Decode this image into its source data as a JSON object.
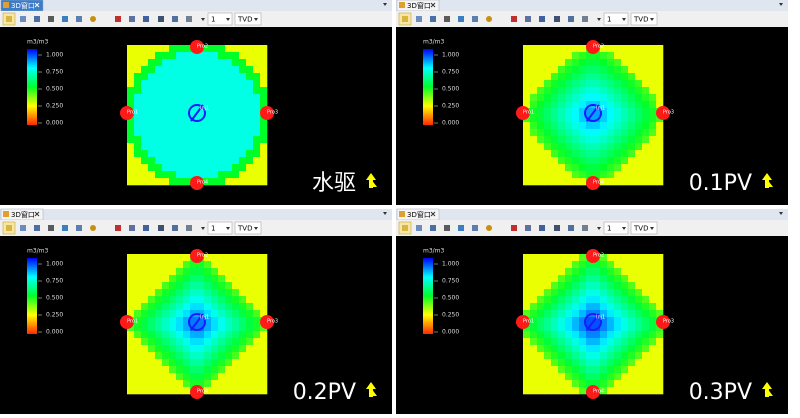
{
  "panels": [
    {
      "tab": "3D窗口",
      "toolbar": {
        "layer": "1",
        "view": "TVD"
      },
      "legend": {
        "unit": "m3/m3",
        "ticks": [
          "1.000",
          "0.750",
          "0.500",
          "0.250",
          "0.000"
        ]
      },
      "wells": {
        "top": "Pro2",
        "left": "Pro1",
        "right": "Pro3",
        "bottom": "Pro4",
        "center": "Inj1"
      },
      "caption": "水驱"
    },
    {
      "tab": "3D窗口",
      "toolbar": {
        "layer": "1",
        "view": "TVD"
      },
      "legend": {
        "unit": "m3/m3",
        "ticks": [
          "1.000",
          "0.750",
          "0.500",
          "0.250",
          "0.000"
        ]
      },
      "wells": {
        "top": "Pro2",
        "left": "Pro1",
        "right": "Pro3",
        "bottom": "Pro4",
        "center": "Inj1"
      },
      "caption": "0.1PV"
    },
    {
      "tab": "3D窗口",
      "toolbar": {
        "layer": "1",
        "view": "TVD"
      },
      "legend": {
        "unit": "m3/m3",
        "ticks": [
          "1.000",
          "0.750",
          "0.500",
          "0.250",
          "0.000"
        ]
      },
      "wells": {
        "top": "Pro2",
        "left": "Pro1",
        "right": "Pro3",
        "bottom": "Pro4",
        "center": "Inj1"
      },
      "caption": "0.2PV"
    },
    {
      "tab": "3D窗口",
      "toolbar": {
        "layer": "1",
        "view": "TVD"
      },
      "legend": {
        "unit": "m3/m3",
        "ticks": [
          "1.000",
          "0.750",
          "0.500",
          "0.250",
          "0.000"
        ]
      },
      "wells": {
        "top": "Pro2",
        "left": "Pro1",
        "right": "Pro3",
        "bottom": "Pro4",
        "center": "Inj1"
      },
      "caption": "0.3PV"
    }
  ]
}
